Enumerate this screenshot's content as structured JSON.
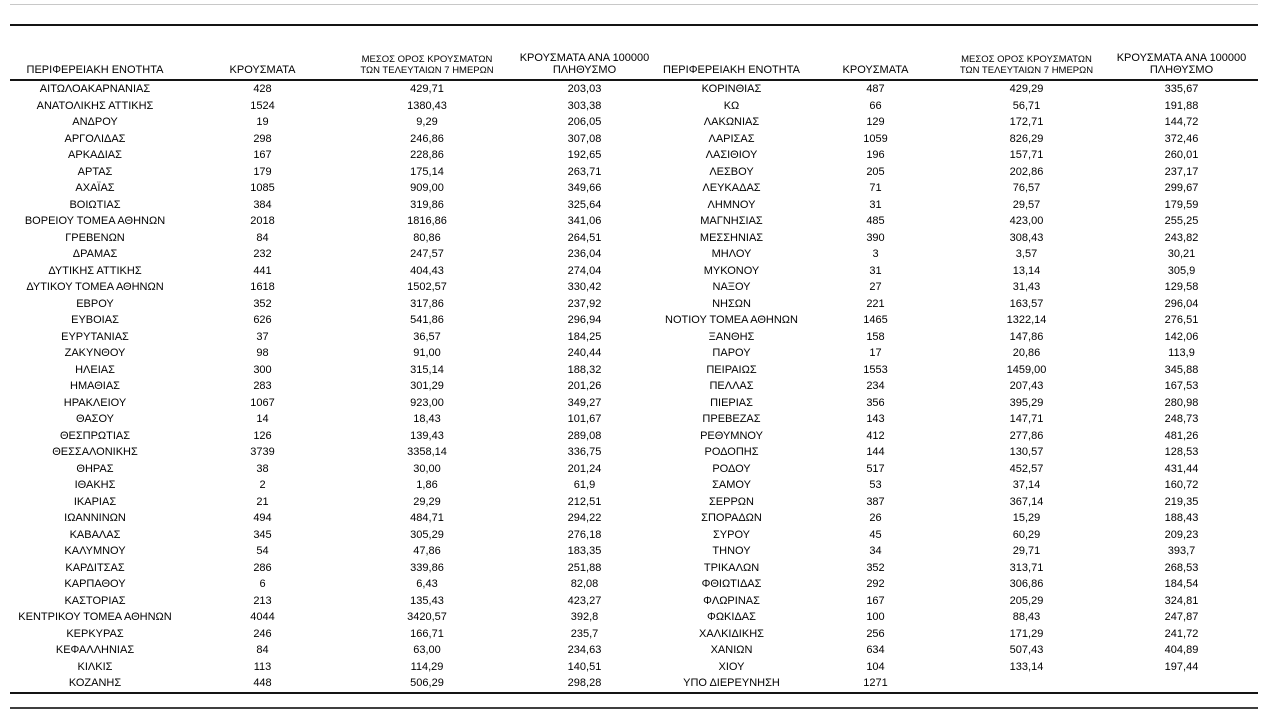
{
  "table": {
    "headers": {
      "region": "ΠΕΡΙΦΕΡΕΙΑΚΗ ΕΝΟΤΗΤΑ",
      "cases": "ΚΡΟΥΣΜΑΤΑ",
      "avg7_line1": "ΜΕΣΟΣ ΟΡΟΣ ΚΡΟΥΣΜΑΤΩΝ",
      "avg7_line2": "ΤΩΝ ΤΕΛΕΥΤΑΙΩΝ 7 ΗΜΕΡΩΝ",
      "per100k_line1": "ΚΡΟΥΣΜΑΤΑ ΑΝΑ 100000",
      "per100k_line2": "ΠΛΗΘΥΣΜΟ"
    },
    "left_rows": [
      [
        "ΑΙΤΩΛΟΑΚΑΡΝΑΝΙΑΣ",
        "428",
        "429,71",
        "203,03"
      ],
      [
        "ΑΝΑΤΟΛΙΚΗΣ ΑΤΤΙΚΗΣ",
        "1524",
        "1380,43",
        "303,38"
      ],
      [
        "ΑΝΔΡΟΥ",
        "19",
        "9,29",
        "206,05"
      ],
      [
        "ΑΡΓΟΛΙΔΑΣ",
        "298",
        "246,86",
        "307,08"
      ],
      [
        "ΑΡΚΑΔΙΑΣ",
        "167",
        "228,86",
        "192,65"
      ],
      [
        "ΑΡΤΑΣ",
        "179",
        "175,14",
        "263,71"
      ],
      [
        "ΑΧΑΪΑΣ",
        "1085",
        "909,00",
        "349,66"
      ],
      [
        "ΒΟΙΩΤΙΑΣ",
        "384",
        "319,86",
        "325,64"
      ],
      [
        "ΒΟΡΕΙΟΥ ΤΟΜΕΑ ΑΘΗΝΩΝ",
        "2018",
        "1816,86",
        "341,06"
      ],
      [
        "ΓΡΕΒΕΝΩΝ",
        "84",
        "80,86",
        "264,51"
      ],
      [
        "ΔΡΑΜΑΣ",
        "232",
        "247,57",
        "236,04"
      ],
      [
        "ΔΥΤΙΚΗΣ ΑΤΤΙΚΗΣ",
        "441",
        "404,43",
        "274,04"
      ],
      [
        "ΔΥΤΙΚΟΥ ΤΟΜΕΑ ΑΘΗΝΩΝ",
        "1618",
        "1502,57",
        "330,42"
      ],
      [
        "ΕΒΡΟΥ",
        "352",
        "317,86",
        "237,92"
      ],
      [
        "ΕΥΒΟΙΑΣ",
        "626",
        "541,86",
        "296,94"
      ],
      [
        "ΕΥΡΥΤΑΝΙΑΣ",
        "37",
        "36,57",
        "184,25"
      ],
      [
        "ΖΑΚΥΝΘΟΥ",
        "98",
        "91,00",
        "240,44"
      ],
      [
        "ΗΛΕΙΑΣ",
        "300",
        "315,14",
        "188,32"
      ],
      [
        "ΗΜΑΘΙΑΣ",
        "283",
        "301,29",
        "201,26"
      ],
      [
        "ΗΡΑΚΛΕΙΟΥ",
        "1067",
        "923,00",
        "349,27"
      ],
      [
        "ΘΑΣΟΥ",
        "14",
        "18,43",
        "101,67"
      ],
      [
        "ΘΕΣΠΡΩΤΙΑΣ",
        "126",
        "139,43",
        "289,08"
      ],
      [
        "ΘΕΣΣΑΛΟΝΙΚΗΣ",
        "3739",
        "3358,14",
        "336,75"
      ],
      [
        "ΘΗΡΑΣ",
        "38",
        "30,00",
        "201,24"
      ],
      [
        "ΙΘΑΚΗΣ",
        "2",
        "1,86",
        "61,9"
      ],
      [
        "ΙΚΑΡΙΑΣ",
        "21",
        "29,29",
        "212,51"
      ],
      [
        "ΙΩΑΝΝΙΝΩΝ",
        "494",
        "484,71",
        "294,22"
      ],
      [
        "ΚΑΒΑΛΑΣ",
        "345",
        "305,29",
        "276,18"
      ],
      [
        "ΚΑΛΥΜΝΟΥ",
        "54",
        "47,86",
        "183,35"
      ],
      [
        "ΚΑΡΔΙΤΣΑΣ",
        "286",
        "339,86",
        "251,88"
      ],
      [
        "ΚΑΡΠΑΘΟΥ",
        "6",
        "6,43",
        "82,08"
      ],
      [
        "ΚΑΣΤΟΡΙΑΣ",
        "213",
        "135,43",
        "423,27"
      ],
      [
        "ΚΕΝΤΡΙΚΟΥ ΤΟΜΕΑ ΑΘΗΝΩΝ",
        "4044",
        "3420,57",
        "392,8"
      ],
      [
        "ΚΕΡΚΥΡΑΣ",
        "246",
        "166,71",
        "235,7"
      ],
      [
        "ΚΕΦΑΛΛΗΝΙΑΣ",
        "84",
        "63,00",
        "234,63"
      ],
      [
        "ΚΙΛΚΙΣ",
        "113",
        "114,29",
        "140,51"
      ],
      [
        "ΚΟΖΑΝΗΣ",
        "448",
        "506,29",
        "298,28"
      ]
    ],
    "right_rows": [
      [
        "ΚΟΡΙΝΘΙΑΣ",
        "487",
        "429,29",
        "335,67"
      ],
      [
        "ΚΩ",
        "66",
        "56,71",
        "191,88"
      ],
      [
        "ΛΑΚΩΝΙΑΣ",
        "129",
        "172,71",
        "144,72"
      ],
      [
        "ΛΑΡΙΣΑΣ",
        "1059",
        "826,29",
        "372,46"
      ],
      [
        "ΛΑΣΙΘΙΟΥ",
        "196",
        "157,71",
        "260,01"
      ],
      [
        "ΛΕΣΒΟΥ",
        "205",
        "202,86",
        "237,17"
      ],
      [
        "ΛΕΥΚΑΔΑΣ",
        "71",
        "76,57",
        "299,67"
      ],
      [
        "ΛΗΜΝΟΥ",
        "31",
        "29,57",
        "179,59"
      ],
      [
        "ΜΑΓΝΗΣΙΑΣ",
        "485",
        "423,00",
        "255,25"
      ],
      [
        "ΜΕΣΣΗΝΙΑΣ",
        "390",
        "308,43",
        "243,82"
      ],
      [
        "ΜΗΛΟΥ",
        "3",
        "3,57",
        "30,21"
      ],
      [
        "ΜΥΚΟΝΟΥ",
        "31",
        "13,14",
        "305,9"
      ],
      [
        "ΝΑΞΟΥ",
        "27",
        "31,43",
        "129,58"
      ],
      [
        "ΝΗΣΩΝ",
        "221",
        "163,57",
        "296,04"
      ],
      [
        "ΝΟΤΙΟΥ ΤΟΜΕΑ ΑΘΗΝΩΝ",
        "1465",
        "1322,14",
        "276,51"
      ],
      [
        "ΞΑΝΘΗΣ",
        "158",
        "147,86",
        "142,06"
      ],
      [
        "ΠΑΡΟΥ",
        "17",
        "20,86",
        "113,9"
      ],
      [
        "ΠΕΙΡΑΙΩΣ",
        "1553",
        "1459,00",
        "345,88"
      ],
      [
        "ΠΕΛΛΑΣ",
        "234",
        "207,43",
        "167,53"
      ],
      [
        "ΠΙΕΡΙΑΣ",
        "356",
        "395,29",
        "280,98"
      ],
      [
        "ΠΡΕΒΕΖΑΣ",
        "143",
        "147,71",
        "248,73"
      ],
      [
        "ΡΕΘΥΜΝΟΥ",
        "412",
        "277,86",
        "481,26"
      ],
      [
        "ΡΟΔΟΠΗΣ",
        "144",
        "130,57",
        "128,53"
      ],
      [
        "ΡΟΔΟΥ",
        "517",
        "452,57",
        "431,44"
      ],
      [
        "ΣΑΜΟΥ",
        "53",
        "37,14",
        "160,72"
      ],
      [
        "ΣΕΡΡΩΝ",
        "387",
        "367,14",
        "219,35"
      ],
      [
        "ΣΠΟΡΑΔΩΝ",
        "26",
        "15,29",
        "188,43"
      ],
      [
        "ΣΥΡΟΥ",
        "45",
        "60,29",
        "209,23"
      ],
      [
        "ΤΗΝΟΥ",
        "34",
        "29,71",
        "393,7"
      ],
      [
        "ΤΡΙΚΑΛΩΝ",
        "352",
        "313,71",
        "268,53"
      ],
      [
        "ΦΘΙΩΤΙΔΑΣ",
        "292",
        "306,86",
        "184,54"
      ],
      [
        "ΦΛΩΡΙΝΑΣ",
        "167",
        "205,29",
        "324,81"
      ],
      [
        "ΦΩΚΙΔΑΣ",
        "100",
        "88,43",
        "247,87"
      ],
      [
        "ΧΑΛΚΙΔΙΚΗΣ",
        "256",
        "171,29",
        "241,72"
      ],
      [
        "ΧΑΝΙΩΝ",
        "634",
        "507,43",
        "404,89"
      ],
      [
        "ΧΙΟΥ",
        "104",
        "133,14",
        "197,44"
      ],
      [
        "ΥΠΟ ΔΙΕΡΕΥΝΗΣΗ",
        "1271",
        "",
        ""
      ]
    ]
  }
}
